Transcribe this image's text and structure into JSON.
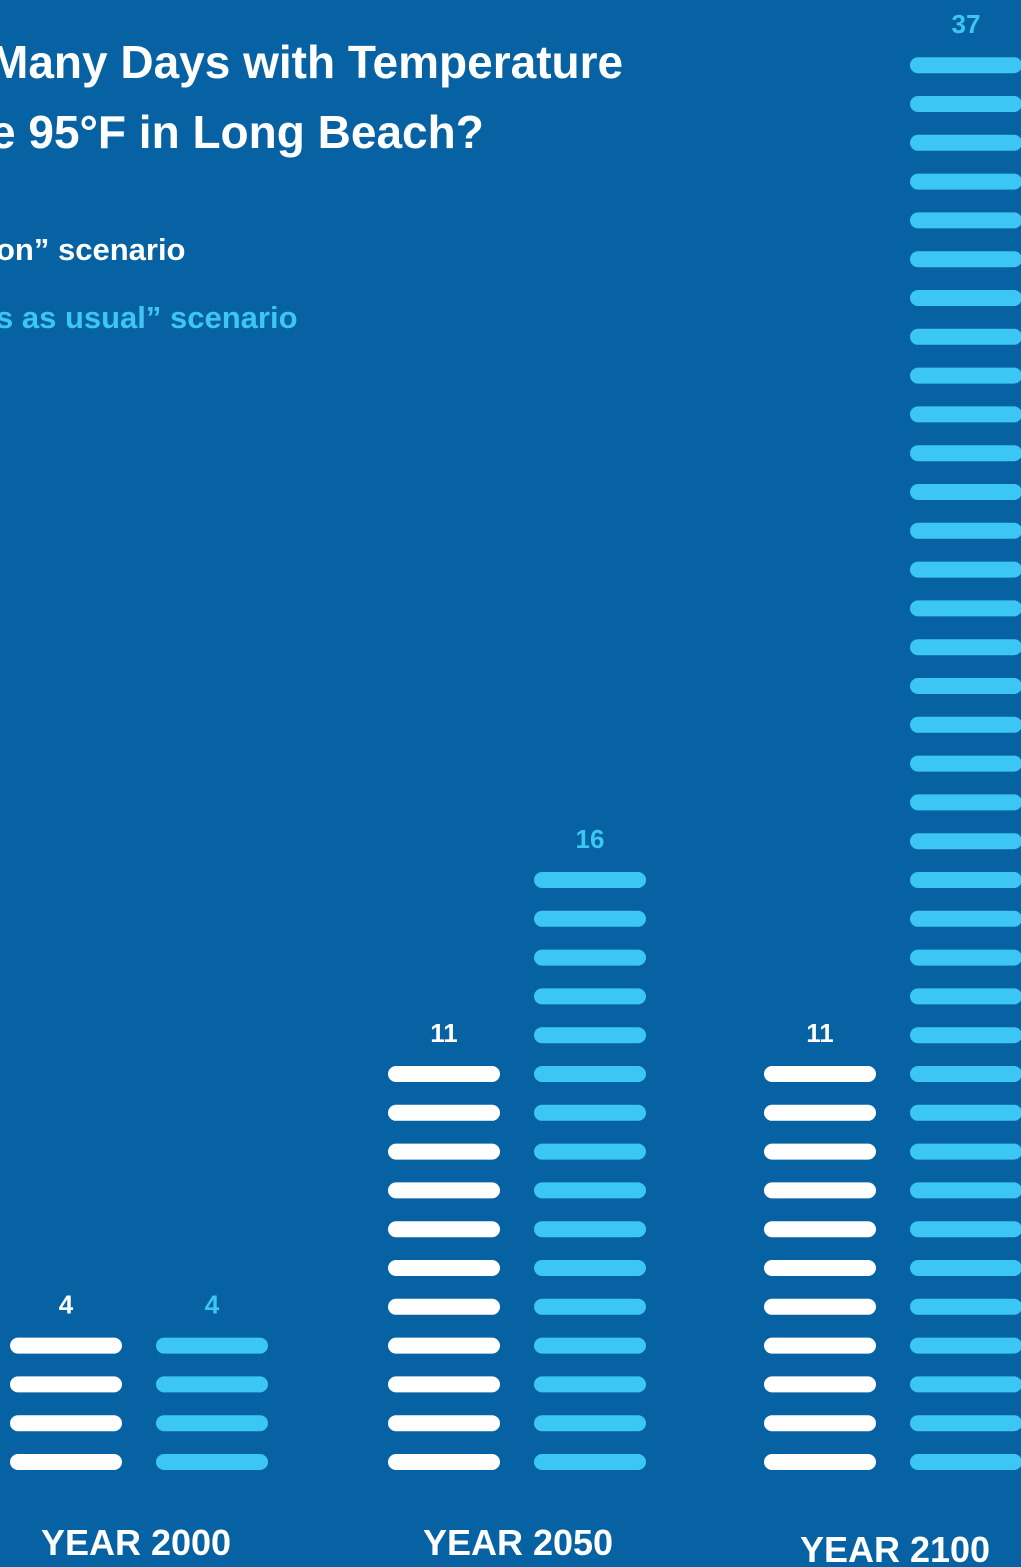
{
  "title_lines": [
    "Many Days with Temperature",
    "e 95°F in Long Beach?"
  ],
  "legend": {
    "series1_text": "on” scenario",
    "series2_text": "s as usual” scenario"
  },
  "colors": {
    "background": "#0762a3",
    "series1": "#ffffff",
    "series2": "#3bc6f4"
  },
  "chart_data": {
    "type": "bar",
    "title": "Many Days with Temperature e 95°F in Long Beach?",
    "categories": [
      "YEAR 2000",
      "YEAR 2050",
      "YEAR 2100"
    ],
    "series": [
      {
        "name": "on” scenario",
        "values": [
          4,
          11,
          11
        ]
      },
      {
        "name": "s as usual” scenario",
        "values": [
          4,
          16,
          37
        ]
      }
    ],
    "grid": false,
    "legend_position": "top-left"
  }
}
